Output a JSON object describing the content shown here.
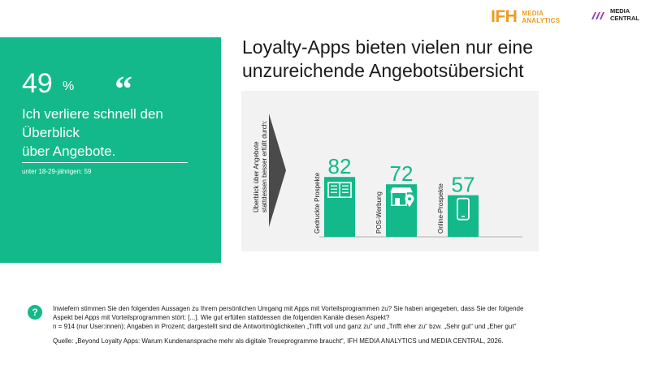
{
  "logos": {
    "ifh_mark": "IFH",
    "ifh_line1": "MEDIA",
    "ifh_line2": "ANALYTICS",
    "mc_line1": "MEDIA",
    "mc_line2": "CENTRAL"
  },
  "panel": {
    "percent": "49",
    "percent_sign": "%",
    "quote_mark": "“",
    "statement": "Ich verliere schnell den Überblick über Angebote.",
    "statement_lines": [
      "Ich verliere schnell den",
      "Überblick",
      "über Angebote."
    ],
    "note": "unter 18-29-jährigen: 59"
  },
  "title": {
    "line1": "Loyalty-Apps bieten vielen nur eine",
    "line2": "unzureichende Angebotsübersicht"
  },
  "chart_data": {
    "type": "bar",
    "axis_label": "Überblick über Angebote stattdessen besser erfüllt durch:",
    "axis_label_lines": [
      "Überblick über Angebote",
      "stattdessen besser erfüllt durch:"
    ],
    "categories": [
      "Gedruckte Prospekte",
      "POS-Werbung",
      "Online-Prospekte"
    ],
    "values": [
      82,
      72,
      57
    ],
    "icons": [
      "newspaper-icon",
      "storefront-icon",
      "smartphone-icon"
    ],
    "ylim": [
      0,
      100
    ],
    "grid": false,
    "legend": "none",
    "bar_color": "#13b98a"
  },
  "footer": {
    "question_icon": "?",
    "question_line1": "Inwiefern stimmen Sie den folgenden Aussagen zu Ihrem persönlichen Umgang mit Apps mit Vorteilsprogrammen zu? Sie haben angegeben, dass Sie der folgende",
    "question_line2": "Aspekt bei Apps mit Vorteilsprogrammen stört: [...]. Wie gut erfüllen stattdessen die folgenden Kanäle diesen Aspekt?",
    "question_line3": "n = 914 (nur User:innen); Angaben in Prozent; dargestellt sind die Antwortmöglichkeiten „Trifft voll und ganz zu“ und „Trifft eher zu“ bzw. „Sehr gut“ und „Eher gut“",
    "source": "Quelle: „Beyond Loyalty Apps: Warum Kundenansprache mehr als digitale Treueprogramme braucht“, IFH MEDIA ANALYTICS und MEDIA CENTRAL, 2026."
  },
  "colors": {
    "accent": "#13b98a",
    "ifh_orange": "#f29a1f",
    "chart_bg": "#f2f2f2",
    "arrow_gray": "#4a4a4a"
  }
}
